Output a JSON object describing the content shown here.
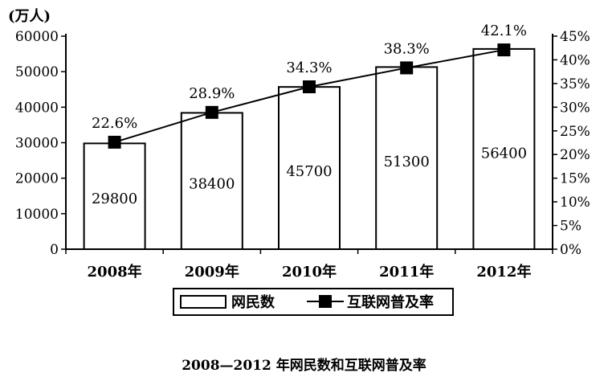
{
  "chart_data": {
    "type": "bar",
    "title": "2008—2012 年网民数和互联网普及率",
    "ylabel_left": "(万人)",
    "categories": [
      "2008年",
      "2009年",
      "2010年",
      "2011年",
      "2012年"
    ],
    "series": [
      {
        "name": "网民数",
        "type": "bar",
        "axis": "left",
        "values": [
          29800,
          38400,
          45700,
          51300,
          56400
        ],
        "labels": [
          "29800",
          "38400",
          "45700",
          "51300",
          "56400"
        ]
      },
      {
        "name": "互联网普及率",
        "type": "line",
        "axis": "right",
        "values": [
          22.6,
          28.9,
          34.3,
          38.3,
          42.1
        ],
        "labels": [
          "22.6%",
          "28.9%",
          "34.3%",
          "38.3%",
          "42.1%"
        ]
      }
    ],
    "y_left": {
      "min": 0,
      "max": 60000,
      "step": 10000,
      "ticks": [
        "0",
        "10000",
        "20000",
        "30000",
        "40000",
        "50000",
        "60000"
      ]
    },
    "y_right": {
      "min": 0,
      "max": 45,
      "step": 5,
      "ticks": [
        "0%",
        "5%",
        "10%",
        "15%",
        "20%",
        "25%",
        "30%",
        "35%",
        "40%",
        "45%"
      ]
    },
    "legend_position": "bottom",
    "grid": false
  }
}
